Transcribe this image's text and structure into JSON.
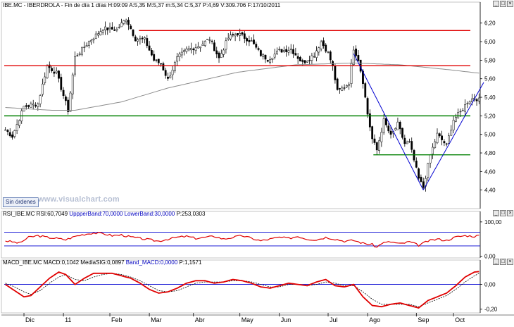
{
  "header": {
    "symbol": "IBE.MC",
    "name": "IBERDROLA",
    "period": "Fin de día 1 días",
    "h_label": "H:",
    "h_value": "09:09",
    "a_label": "A:",
    "a_value": "5,35",
    "m_label": "M:",
    "m_value": "5,37",
    "mi_label": "m:",
    "mi_value": "5,34",
    "c_label": "C:",
    "c_value": "5,37",
    "p_label": "P:",
    "p_value": "4,69",
    "v_label": "V:",
    "v_value": "309.706",
    "f_label": "F:",
    "f_value": "17/10/2011"
  },
  "rsi_header": {
    "name": "RSI_IBE.MC",
    "rsi_label": "RSI:",
    "rsi_value": "60,7049",
    "upper_label": "UppperBand:",
    "upper_value": "70,0000",
    "lower_label": "LowerBand:",
    "lower_value": "30,0000",
    "p_label": "P:",
    "p_value": "253,0303"
  },
  "macd_header": {
    "name": "MACD_IBE.MC",
    "macd_label": "MACD:",
    "macd_value": "0,1042",
    "signal_label": "MediaSIG:",
    "signal_value": "0,0897",
    "band_label": "Band_MACD:",
    "band_value": "0,0000",
    "p_label": "P:",
    "p_value": "1,1571"
  },
  "buttons": {
    "sin_ordenes": "Sin órdenes",
    "minimize": "_",
    "maximize": "□",
    "close": "×"
  },
  "watermark": "www.visualchart.com",
  "chart_data": [
    {
      "type": "candlestick",
      "symbol": "IBE.MC",
      "ylim": [
        4.2,
        6.35
      ],
      "y_ticks": [
        "4,40",
        "4,60",
        "4,80",
        "5,00",
        "5,20",
        "5,40",
        "5,60",
        "5,80",
        "6,00",
        "6,20"
      ],
      "x_labels": [
        "Dic",
        "11",
        "Feb",
        "Mar",
        "Abr",
        "May",
        "Jun",
        "Jul",
        "Ago",
        "Sep",
        "Oct"
      ],
      "x_label_index": [
        8,
        25,
        45,
        62,
        81,
        101,
        118,
        139,
        156,
        177,
        193
      ],
      "n_bars": 205,
      "price_path": [
        [
          0,
          5.05
        ],
        [
          3,
          4.98
        ],
        [
          8,
          5.3
        ],
        [
          14,
          5.33
        ],
        [
          18,
          5.74
        ],
        [
          22,
          5.66
        ],
        [
          27,
          5.26
        ],
        [
          30,
          5.83
        ],
        [
          36,
          6.0
        ],
        [
          42,
          6.14
        ],
        [
          48,
          6.13
        ],
        [
          52,
          6.25
        ],
        [
          56,
          6.03
        ],
        [
          60,
          6.02
        ],
        [
          64,
          5.8
        ],
        [
          67,
          5.76
        ],
        [
          70,
          5.59
        ],
        [
          74,
          5.82
        ],
        [
          78,
          5.91
        ],
        [
          84,
          5.96
        ],
        [
          88,
          6.03
        ],
        [
          92,
          5.82
        ],
        [
          96,
          6.04
        ],
        [
          100,
          6.09
        ],
        [
          106,
          6.0
        ],
        [
          110,
          5.86
        ],
        [
          113,
          5.81
        ],
        [
          118,
          5.9
        ],
        [
          123,
          5.92
        ],
        [
          128,
          5.77
        ],
        [
          133,
          5.86
        ],
        [
          136,
          6.0
        ],
        [
          139,
          5.88
        ],
        [
          141,
          5.73
        ],
        [
          143,
          5.46
        ],
        [
          146,
          5.51
        ],
        [
          148,
          5.56
        ],
        [
          150,
          5.93
        ],
        [
          152,
          5.81
        ],
        [
          154,
          5.57
        ],
        [
          156,
          5.22
        ],
        [
          158,
          4.95
        ],
        [
          160,
          4.83
        ],
        [
          163,
          5.15
        ],
        [
          166,
          4.98
        ],
        [
          169,
          5.11
        ],
        [
          172,
          4.9
        ],
        [
          174,
          4.91
        ],
        [
          176,
          4.72
        ],
        [
          178,
          4.52
        ],
        [
          180,
          4.43
        ],
        [
          183,
          4.78
        ],
        [
          186,
          5.0
        ],
        [
          190,
          4.88
        ],
        [
          193,
          5.16
        ],
        [
          196,
          5.24
        ],
        [
          199,
          5.35
        ],
        [
          202,
          5.4
        ],
        [
          204,
          5.37
        ]
      ],
      "sma_path": [
        [
          0,
          5.29
        ],
        [
          20,
          5.26
        ],
        [
          30,
          5.26
        ],
        [
          50,
          5.35
        ],
        [
          70,
          5.5
        ],
        [
          100,
          5.67
        ],
        [
          125,
          5.75
        ],
        [
          150,
          5.77
        ],
        [
          170,
          5.75
        ],
        [
          190,
          5.7
        ],
        [
          204,
          5.66
        ]
      ],
      "sma_start": 0,
      "horizontal_lines": [
        {
          "value": 6.12,
          "from_bar": 58,
          "color": "#e00000"
        },
        {
          "value": 5.74,
          "from_bar": 0,
          "color": "#e00000"
        },
        {
          "value": 5.2,
          "from_bar": 0,
          "color": "#008000"
        },
        {
          "value": 4.78,
          "from_bar": 159,
          "color": "#008000"
        }
      ],
      "trend_lines": [
        {
          "from": [
            150,
            5.87
          ],
          "to": [
            180,
            4.4
          ],
          "color": "#0000d0"
        },
        {
          "from": [
            180,
            4.4
          ],
          "to": [
            206,
            5.56
          ],
          "color": "#0000d0"
        }
      ],
      "colors": {
        "candle": "#000000",
        "sma": "#8c8c8c"
      }
    },
    {
      "type": "line",
      "name": "RSI_IBE.MC",
      "ylim": [
        -5,
        110
      ],
      "y_ticks": [
        "0,00",
        "100,00"
      ],
      "bands": [
        70,
        30
      ],
      "path": [
        [
          0,
          45
        ],
        [
          3,
          42
        ],
        [
          6,
          38
        ],
        [
          10,
          55
        ],
        [
          14,
          60
        ],
        [
          18,
          55
        ],
        [
          22,
          52
        ],
        [
          26,
          48
        ],
        [
          30,
          58
        ],
        [
          34,
          64
        ],
        [
          38,
          68
        ],
        [
          42,
          66
        ],
        [
          46,
          60
        ],
        [
          50,
          62
        ],
        [
          54,
          56
        ],
        [
          58,
          52
        ],
        [
          62,
          48
        ],
        [
          66,
          44
        ],
        [
          70,
          50
        ],
        [
          74,
          55
        ],
        [
          78,
          58
        ],
        [
          82,
          52
        ],
        [
          86,
          55
        ],
        [
          90,
          58
        ],
        [
          94,
          50
        ],
        [
          98,
          55
        ],
        [
          102,
          60
        ],
        [
          106,
          52
        ],
        [
          110,
          45
        ],
        [
          114,
          50
        ],
        [
          118,
          55
        ],
        [
          122,
          52
        ],
        [
          126,
          58
        ],
        [
          130,
          50
        ],
        [
          134,
          48
        ],
        [
          138,
          55
        ],
        [
          142,
          50
        ],
        [
          146,
          44
        ],
        [
          150,
          46
        ],
        [
          154,
          38
        ],
        [
          158,
          34
        ],
        [
          160,
          26
        ],
        [
          162,
          38
        ],
        [
          166,
          42
        ],
        [
          170,
          36
        ],
        [
          174,
          42
        ],
        [
          178,
          32
        ],
        [
          182,
          44
        ],
        [
          186,
          50
        ],
        [
          190,
          46
        ],
        [
          194,
          56
        ],
        [
          198,
          60
        ],
        [
          202,
          58
        ],
        [
          204,
          60.7
        ]
      ],
      "colors": {
        "line": "#e00000",
        "bands": "#0000d0"
      }
    },
    {
      "type": "line",
      "name": "MACD_IBE.MC",
      "ylim": [
        -0.23,
        0.14
      ],
      "y_ticks": [
        "-0,20",
        "0,00"
      ],
      "band": 0,
      "macd_path": [
        [
          0,
          0.0
        ],
        [
          4,
          -0.05
        ],
        [
          8,
          -0.1
        ],
        [
          11,
          -0.09
        ],
        [
          15,
          -0.02
        ],
        [
          19,
          0.05
        ],
        [
          23,
          0.1
        ],
        [
          26,
          0.08
        ],
        [
          30,
          0.0
        ],
        [
          34,
          0.05
        ],
        [
          38,
          0.09
        ],
        [
          42,
          0.09
        ],
        [
          46,
          0.09
        ],
        [
          50,
          0.07
        ],
        [
          54,
          0.05
        ],
        [
          58,
          0.01
        ],
        [
          62,
          -0.04
        ],
        [
          66,
          -0.07
        ],
        [
          70,
          -0.06
        ],
        [
          74,
          -0.03
        ],
        [
          78,
          0.01
        ],
        [
          82,
          0.03
        ],
        [
          86,
          0.03
        ],
        [
          90,
          0.01
        ],
        [
          94,
          0.02
        ],
        [
          98,
          0.04
        ],
        [
          102,
          0.03
        ],
        [
          106,
          0.01
        ],
        [
          110,
          -0.02
        ],
        [
          114,
          -0.03
        ],
        [
          118,
          -0.01
        ],
        [
          122,
          0.01
        ],
        [
          126,
          0.0
        ],
        [
          130,
          -0.01
        ],
        [
          134,
          0.02
        ],
        [
          138,
          0.04
        ],
        [
          142,
          -0.01
        ],
        [
          146,
          -0.02
        ],
        [
          150,
          0.0
        ],
        [
          154,
          -0.1
        ],
        [
          158,
          -0.17
        ],
        [
          162,
          -0.18
        ],
        [
          166,
          -0.16
        ],
        [
          170,
          -0.15
        ],
        [
          174,
          -0.17
        ],
        [
          178,
          -0.19
        ],
        [
          182,
          -0.13
        ],
        [
          186,
          -0.1
        ],
        [
          190,
          -0.07
        ],
        [
          194,
          -0.01
        ],
        [
          198,
          0.06
        ],
        [
          202,
          0.1
        ],
        [
          204,
          0.104
        ]
      ],
      "signal_path": [
        [
          0,
          0.01
        ],
        [
          4,
          -0.02
        ],
        [
          8,
          -0.06
        ],
        [
          11,
          -0.08
        ],
        [
          15,
          -0.05
        ],
        [
          19,
          0.01
        ],
        [
          23,
          0.06
        ],
        [
          26,
          0.08
        ],
        [
          30,
          0.04
        ],
        [
          34,
          0.03
        ],
        [
          38,
          0.06
        ],
        [
          42,
          0.08
        ],
        [
          46,
          0.09
        ],
        [
          50,
          0.08
        ],
        [
          54,
          0.06
        ],
        [
          58,
          0.03
        ],
        [
          62,
          -0.01
        ],
        [
          66,
          -0.05
        ],
        [
          70,
          -0.06
        ],
        [
          74,
          -0.05
        ],
        [
          78,
          -0.02
        ],
        [
          82,
          0.01
        ],
        [
          86,
          0.02
        ],
        [
          90,
          0.02
        ],
        [
          94,
          0.02
        ],
        [
          98,
          0.03
        ],
        [
          102,
          0.03
        ],
        [
          106,
          0.02
        ],
        [
          110,
          0.0
        ],
        [
          114,
          -0.02
        ],
        [
          118,
          -0.02
        ],
        [
          122,
          0.0
        ],
        [
          126,
          0.0
        ],
        [
          130,
          -0.01
        ],
        [
          134,
          0.0
        ],
        [
          138,
          0.02
        ],
        [
          142,
          0.01
        ],
        [
          146,
          -0.01
        ],
        [
          150,
          -0.01
        ],
        [
          154,
          -0.06
        ],
        [
          158,
          -0.12
        ],
        [
          162,
          -0.16
        ],
        [
          166,
          -0.16
        ],
        [
          170,
          -0.16
        ],
        [
          174,
          -0.16
        ],
        [
          178,
          -0.18
        ],
        [
          182,
          -0.15
        ],
        [
          186,
          -0.12
        ],
        [
          190,
          -0.09
        ],
        [
          194,
          -0.04
        ],
        [
          198,
          0.02
        ],
        [
          202,
          0.07
        ],
        [
          204,
          0.0897
        ]
      ],
      "colors": {
        "macd": "#e00000",
        "signal": "#000000",
        "band": "#0000d0"
      }
    }
  ]
}
